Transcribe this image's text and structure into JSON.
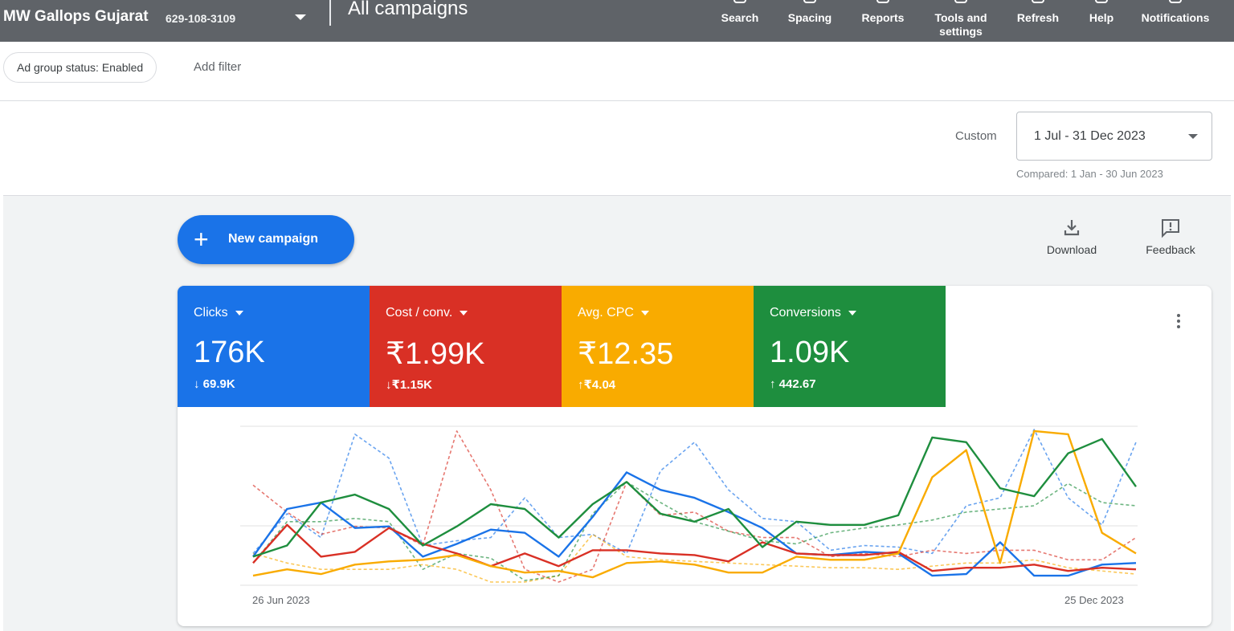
{
  "header": {
    "account_name": "MW Gallops Gujarat",
    "account_id": "629-108-3109",
    "page_title": "All campaigns",
    "tools": [
      {
        "label": "Search",
        "icon": "search-icon"
      },
      {
        "label": "Spacing",
        "icon": "spacing-icon"
      },
      {
        "label": "Reports",
        "icon": "reports-icon"
      },
      {
        "label": "Tools and settings",
        "icon": "tools-icon"
      },
      {
        "label": "Refresh",
        "icon": "refresh-icon"
      },
      {
        "label": "Help",
        "icon": "help-icon"
      },
      {
        "label": "Notifications",
        "icon": "bell-icon"
      }
    ]
  },
  "filters": {
    "chip": "Ad group status: Enabled",
    "add_filter": "Add filter"
  },
  "date": {
    "label": "Custom",
    "range": "1 Jul - 31 Dec 2023",
    "compared": "Compared: 1 Jan - 30 Jun 2023"
  },
  "actions": {
    "new_campaign": "New campaign",
    "download": "Download",
    "feedback": "Feedback"
  },
  "metrics": [
    {
      "name": "Clicks",
      "value": "176K",
      "delta": "69.9K",
      "direction": "down",
      "color": "#1a73e8"
    },
    {
      "name": "Cost / conv.",
      "value": "₹1.99K",
      "delta": "₹1.15K",
      "direction": "down",
      "color": "#d93025"
    },
    {
      "name": "Avg. CPC",
      "value": "₹12.35",
      "delta": "₹4.04",
      "direction": "up",
      "color": "#f9ab00"
    },
    {
      "name": "Conversions",
      "value": "1.09K",
      "delta": "442.67",
      "direction": "up",
      "color": "#1e8e3e"
    }
  ],
  "chart_data": {
    "type": "line",
    "x_start_label": "26 Jun 2023",
    "x_end_label": "25 Dec 2023",
    "grid": true,
    "normalized": true,
    "ylim": [
      0,
      100
    ],
    "series": [
      {
        "metric": "Clicks",
        "color": "#1a73e8",
        "style": "solid",
        "values": [
          18,
          48,
          52,
          36,
          37,
          18,
          26,
          35,
          33,
          18,
          43,
          71,
          60,
          55,
          46,
          36,
          20,
          19,
          21,
          20,
          6,
          7,
          27,
          6,
          6,
          13,
          14
        ]
      },
      {
        "metric": "Clicks",
        "color": "#1a73e8",
        "style": "dashed",
        "values": [
          20,
          45,
          30,
          95,
          80,
          25,
          28,
          30,
          55,
          30,
          32,
          20,
          72,
          90,
          60,
          42,
          40,
          22,
          25,
          24,
          20,
          50,
          55,
          98,
          55,
          38,
          90
        ]
      },
      {
        "metric": "Cost / conv.",
        "color": "#d93025",
        "style": "solid",
        "values": [
          14,
          38,
          18,
          21,
          36,
          26,
          20,
          12,
          20,
          12,
          22,
          22,
          20,
          19,
          15,
          27,
          20,
          19,
          19,
          21,
          9,
          11,
          11,
          13,
          9,
          11,
          10
        ]
      },
      {
        "metric": "Cost / conv.",
        "color": "#d93025",
        "style": "dashed",
        "values": [
          63,
          46,
          32,
          37,
          36,
          25,
          97,
          60,
          10,
          2,
          10,
          65,
          44,
          46,
          34,
          30,
          30,
          18,
          20,
          18,
          22,
          20,
          22,
          22,
          16,
          16,
          30
        ]
      },
      {
        "metric": "Avg. CPC",
        "color": "#f9ab00",
        "style": "solid",
        "values": [
          6,
          10,
          7,
          13,
          15,
          16,
          19,
          12,
          8,
          9,
          5,
          14,
          15,
          13,
          8,
          8,
          18,
          16,
          16,
          20,
          68,
          85,
          14,
          97,
          95,
          33,
          20
        ]
      },
      {
        "metric": "Avg. CPC",
        "color": "#f9ab00",
        "style": "dashed",
        "values": [
          20,
          14,
          10,
          10,
          10,
          13,
          10,
          2,
          2,
          6,
          32,
          18,
          16,
          15,
          14,
          13,
          12,
          11,
          11,
          10,
          12,
          14,
          14,
          16,
          11,
          9,
          7
        ]
      },
      {
        "metric": "Conversions",
        "color": "#1e8e3e",
        "style": "solid",
        "values": [
          18,
          25,
          52,
          57,
          48,
          25,
          37,
          51,
          48,
          30,
          51,
          65,
          45,
          40,
          48,
          24,
          40,
          38,
          38,
          44,
          93,
          90,
          61,
          56,
          83,
          92,
          62
        ]
      },
      {
        "metric": "Conversions",
        "color": "#1e8e3e",
        "style": "dashed",
        "values": [
          14,
          40,
          40,
          42,
          40,
          10,
          20,
          17,
          3,
          6,
          45,
          65,
          52,
          40,
          34,
          28,
          26,
          33,
          36,
          38,
          41,
          46,
          48,
          50,
          64,
          52,
          50
        ]
      }
    ]
  }
}
